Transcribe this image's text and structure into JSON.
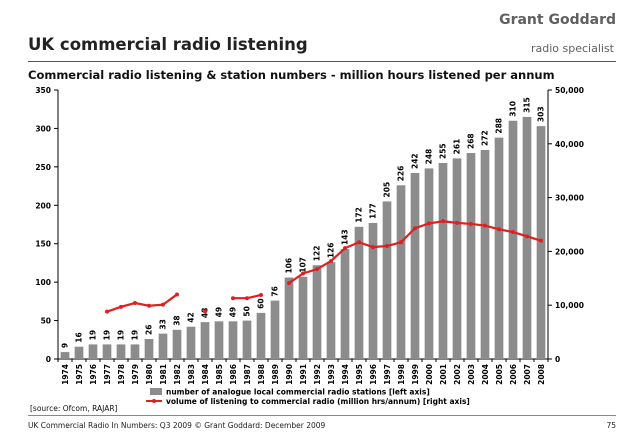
{
  "header": {
    "brand": "Grant Goddard",
    "brand_sub": "radio specialist",
    "title": "UK commercial radio listening"
  },
  "footer": {
    "source": "[source: Ofcom, RAJAR]",
    "text": "UK Commercial Radio In Numbers: Q3 2009 © Grant Goddard: December 2009",
    "page": "75"
  },
  "colors": {
    "bar": "#8c8c8c",
    "line": "#e02020"
  },
  "chart_data": {
    "type": "bar",
    "title": "Commercial radio listening & station numbers - million hours listened per annum",
    "categories": [
      "1974",
      "1975",
      "1976",
      "1977",
      "1978",
      "1979",
      "1980",
      "1981",
      "1982",
      "1983",
      "1984",
      "1985",
      "1986",
      "1987",
      "1988",
      "1989",
      "1990",
      "1991",
      "1992",
      "1993",
      "1994",
      "1995",
      "1996",
      "1997",
      "1998",
      "1999",
      "2000",
      "2001",
      "2002",
      "2003",
      "2004",
      "2005",
      "2006",
      "2007",
      "2008"
    ],
    "series": [
      {
        "name": "number of analogue local commercial radio stations [left axis]",
        "type": "bar",
        "axis": "left",
        "values": [
          9,
          16,
          19,
          19,
          19,
          19,
          26,
          33,
          38,
          42,
          48,
          49,
          49,
          50,
          60,
          76,
          106,
          107,
          122,
          126,
          143,
          172,
          177,
          205,
          226,
          242,
          248,
          255,
          261,
          268,
          272,
          288,
          310,
          315,
          303
        ]
      },
      {
        "name": "volume of listening to commercial radio (million hrs/annum) [right axis]",
        "type": "line",
        "axis": "right",
        "segments": [
          {
            "x": [
              "1977",
              "1978",
              "1979",
              "1980",
              "1981",
              "1982"
            ],
            "values": [
              8800,
              9700,
              10400,
              9900,
              10100,
              12000
            ]
          },
          {
            "x": [
              "1984"
            ],
            "values": [
              8800
            ]
          },
          {
            "x": [
              "1986",
              "1987",
              "1988"
            ],
            "values": [
              11300,
              11300,
              11900
            ]
          },
          {
            "x": [
              "1990",
              "1991",
              "1992",
              "1993",
              "1994",
              "1995",
              "1996",
              "1997",
              "1998",
              "1999",
              "2000",
              "2001",
              "2002",
              "2003",
              "2004",
              "2005",
              "2006",
              "2007",
              "2008"
            ],
            "values": [
              14100,
              15900,
              16700,
              18200,
              20600,
              21700,
              20800,
              21000,
              21700,
              24300,
              25200,
              25600,
              25300,
              25100,
              24800,
              24100,
              23600,
              22800,
              22000
            ]
          }
        ]
      }
    ],
    "left_axis": {
      "min": 0,
      "max": 350,
      "ticks": [
        "0",
        "50",
        "100",
        "150",
        "200",
        "250",
        "300",
        "350"
      ]
    },
    "right_axis": {
      "min": 0,
      "max": 50000,
      "ticks": [
        "0",
        "10,000",
        "20,000",
        "30,000",
        "40,000",
        "50,000"
      ]
    },
    "grid": false,
    "legend_position": "bottom"
  }
}
